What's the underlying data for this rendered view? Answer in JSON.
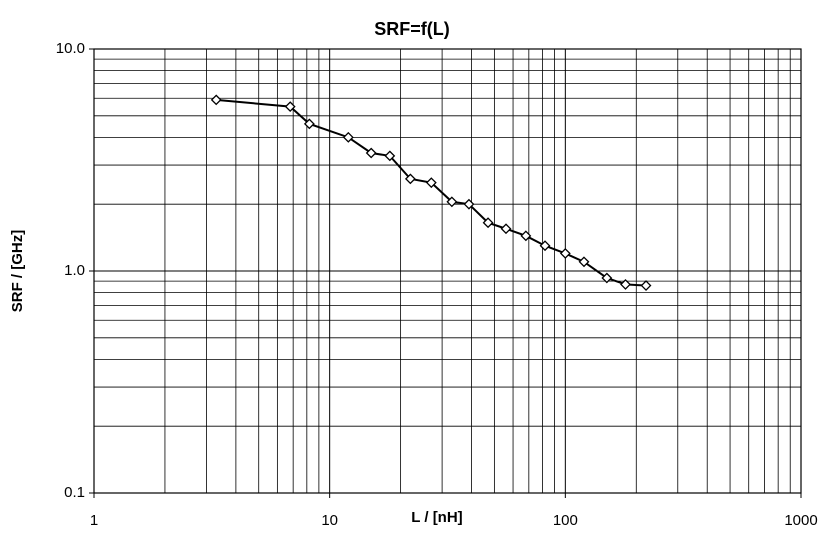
{
  "chart_data": {
    "type": "line",
    "title": "SRF=f(L)",
    "x_label": "L / [nH]",
    "y_label": "SRF / [GHz]",
    "x": [
      3.3,
      6.8,
      8.2,
      12,
      15,
      18,
      22,
      27,
      33,
      39,
      47,
      56,
      68,
      82,
      100,
      120,
      150,
      180,
      220
    ],
    "series": [
      {
        "color": "#000000",
        "values": [
          5.9,
          5.5,
          4.6,
          4.0,
          3.4,
          3.3,
          2.6,
          2.5,
          2.05,
          2.0,
          1.65,
          1.55,
          1.44,
          1.3,
          1.2,
          1.1,
          0.93,
          0.87,
          0.86
        ]
      }
    ],
    "xlim": [
      1,
      1000
    ],
    "xticks": [
      1,
      10,
      100,
      1000
    ],
    "ylim": [
      0.1,
      10
    ],
    "yticks": [
      0.1,
      {
        "value": 1,
        "label": "1.0"
      },
      {
        "value": 10,
        "label": "10.0"
      }
    ],
    "x_log": true,
    "y_log": true,
    "grid": true,
    "minor_grid": true
  }
}
